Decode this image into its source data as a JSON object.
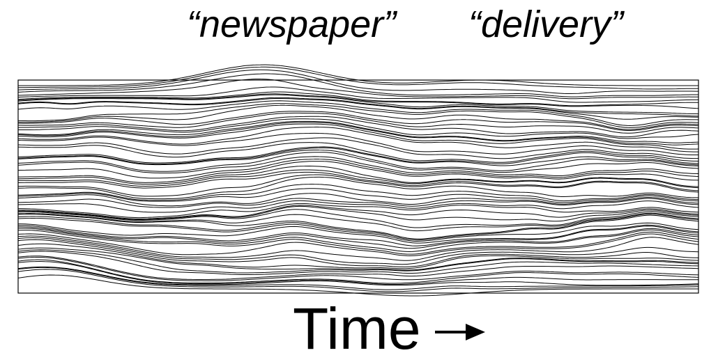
{
  "labels": {
    "word_1": "“newspaper”",
    "word_2": "“delivery”",
    "axis_caption": "Time"
  },
  "icons": {
    "axis_arrow": "right-arrow-icon"
  },
  "colors": {
    "ink": "#000000",
    "background": "#ffffff"
  }
}
